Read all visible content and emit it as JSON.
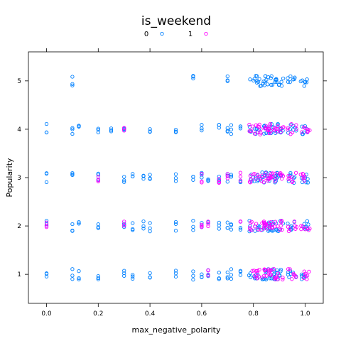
{
  "chart_data": {
    "type": "scatter",
    "title": "is_weekend",
    "xlabel": "max_negative_polarity",
    "ylabel": "Popularity",
    "xlim": [
      -0.07,
      1.07
    ],
    "ylim": [
      0.4,
      5.6
    ],
    "x_ticks": [
      0.0,
      0.2,
      0.4,
      0.6,
      0.8,
      1.0
    ],
    "x_tick_labels": [
      "0.0",
      "0.2",
      "0.4",
      "0.6",
      "0.8",
      "1.0"
    ],
    "y_ticks": [
      1,
      2,
      3,
      4,
      5
    ],
    "y_tick_labels": [
      "1",
      "2",
      "3",
      "4",
      "5"
    ],
    "grid": false,
    "legend_position": "top",
    "jitter": "vertical",
    "series": [
      {
        "name": "0",
        "color": "#0080ff",
        "marker": "open-circle",
        "points": [
          [
            0.0,
            1
          ],
          [
            0.0,
            2
          ],
          [
            0.0,
            3
          ],
          [
            0.0,
            4
          ],
          [
            0.1,
            1
          ],
          [
            0.1,
            2
          ],
          [
            0.1,
            3
          ],
          [
            0.1,
            4
          ],
          [
            0.1,
            5
          ],
          [
            0.125,
            1
          ],
          [
            0.125,
            2
          ],
          [
            0.125,
            4
          ],
          [
            0.2,
            1
          ],
          [
            0.2,
            2
          ],
          [
            0.2,
            3
          ],
          [
            0.2,
            4
          ],
          [
            0.25,
            4
          ],
          [
            0.3,
            1
          ],
          [
            0.3,
            2
          ],
          [
            0.3,
            3
          ],
          [
            0.3,
            4
          ],
          [
            0.333,
            1
          ],
          [
            0.333,
            2
          ],
          [
            0.333,
            3
          ],
          [
            0.375,
            2
          ],
          [
            0.375,
            3
          ],
          [
            0.4,
            1
          ],
          [
            0.4,
            2
          ],
          [
            0.4,
            3
          ],
          [
            0.4,
            4
          ],
          [
            0.5,
            1
          ],
          [
            0.5,
            2
          ],
          [
            0.5,
            3
          ],
          [
            0.5,
            4
          ],
          [
            0.567,
            1
          ],
          [
            0.567,
            2
          ],
          [
            0.567,
            3
          ],
          [
            0.567,
            5
          ],
          [
            0.6,
            1
          ],
          [
            0.6,
            2
          ],
          [
            0.6,
            3
          ],
          [
            0.6,
            4
          ],
          [
            0.625,
            1
          ],
          [
            0.625,
            2
          ],
          [
            0.625,
            3
          ],
          [
            0.667,
            1
          ],
          [
            0.667,
            2
          ],
          [
            0.667,
            3
          ],
          [
            0.667,
            4
          ],
          [
            0.7,
            1
          ],
          [
            0.7,
            2
          ],
          [
            0.7,
            3
          ],
          [
            0.7,
            4
          ],
          [
            0.7,
            5
          ],
          [
            0.714,
            1
          ],
          [
            0.714,
            2
          ],
          [
            0.714,
            3
          ],
          [
            0.714,
            4
          ],
          [
            0.75,
            1
          ],
          [
            0.75,
            2
          ],
          [
            0.75,
            3
          ],
          [
            0.75,
            4
          ],
          [
            0.8,
            1
          ],
          [
            0.8,
            2
          ],
          [
            0.8,
            3
          ],
          [
            0.8,
            4
          ],
          [
            0.8,
            5
          ],
          [
            0.833,
            1
          ],
          [
            0.833,
            2
          ],
          [
            0.833,
            3
          ],
          [
            0.833,
            4
          ],
          [
            0.833,
            5
          ],
          [
            0.857,
            1
          ],
          [
            0.857,
            2
          ],
          [
            0.857,
            3
          ],
          [
            0.857,
            4
          ],
          [
            0.857,
            5
          ],
          [
            0.875,
            1
          ],
          [
            0.875,
            2
          ],
          [
            0.875,
            3
          ],
          [
            0.875,
            4
          ],
          [
            0.875,
            5
          ],
          [
            0.9,
            1
          ],
          [
            0.9,
            2
          ],
          [
            0.9,
            3
          ],
          [
            0.9,
            4
          ],
          [
            0.9,
            5
          ],
          [
            0.95,
            1
          ],
          [
            0.95,
            2
          ],
          [
            0.95,
            3
          ],
          [
            0.95,
            4
          ],
          [
            0.95,
            5
          ],
          [
            1.0,
            1
          ],
          [
            1.0,
            2
          ],
          [
            1.0,
            3
          ],
          [
            1.0,
            4
          ],
          [
            1.0,
            5
          ]
        ]
      },
      {
        "name": "1",
        "color": "#ff00ff",
        "marker": "open-circle",
        "points": [
          [
            0.0,
            2
          ],
          [
            0.2,
            3
          ],
          [
            0.3,
            2
          ],
          [
            0.3,
            4
          ],
          [
            0.6,
            2
          ],
          [
            0.6,
            3
          ],
          [
            0.625,
            1
          ],
          [
            0.625,
            2
          ],
          [
            0.667,
            3
          ],
          [
            0.7,
            3
          ],
          [
            0.75,
            2
          ],
          [
            0.75,
            3
          ],
          [
            0.8,
            1
          ],
          [
            0.8,
            2
          ],
          [
            0.8,
            3
          ],
          [
            0.8,
            4
          ],
          [
            0.833,
            1
          ],
          [
            0.833,
            2
          ],
          [
            0.833,
            3
          ],
          [
            0.833,
            4
          ],
          [
            0.857,
            1
          ],
          [
            0.857,
            2
          ],
          [
            0.857,
            3
          ],
          [
            0.857,
            4
          ],
          [
            0.875,
            1
          ],
          [
            0.875,
            2
          ],
          [
            0.875,
            3
          ],
          [
            0.875,
            4
          ],
          [
            0.9,
            1
          ],
          [
            0.9,
            2
          ],
          [
            0.9,
            3
          ],
          [
            0.9,
            4
          ],
          [
            0.95,
            1
          ],
          [
            0.95,
            2
          ],
          [
            0.95,
            3
          ],
          [
            0.95,
            4
          ],
          [
            1.0,
            1
          ],
          [
            1.0,
            2
          ],
          [
            1.0,
            3
          ],
          [
            1.0,
            4
          ]
        ]
      }
    ]
  }
}
